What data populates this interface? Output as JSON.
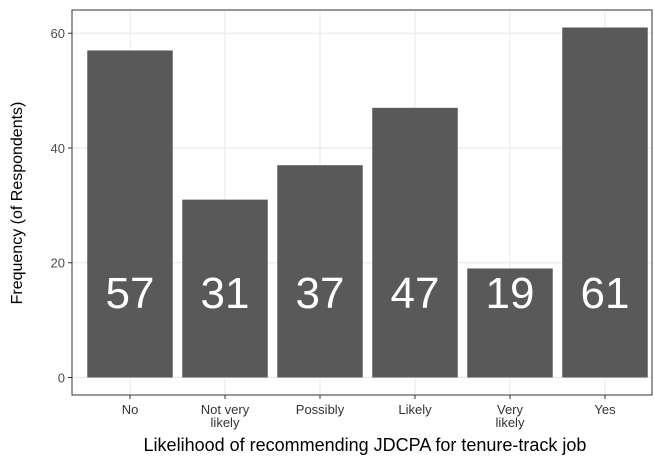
{
  "chart_data": {
    "type": "bar",
    "x_label": "Likelihood of recommending JDCPA for tenure-track job",
    "y_label": "Frequency (of Respondents)",
    "categories": [
      "No",
      "Not very\nlikely",
      "Possibly",
      "Likely",
      "Very\nlikely",
      "Yes"
    ],
    "values": [
      57,
      31,
      37,
      47,
      19,
      61
    ],
    "color": "#595959",
    "ylim": [
      -3.05,
      64.05
    ],
    "yticks": [
      0,
      20,
      40,
      60
    ],
    "grid": true
  }
}
